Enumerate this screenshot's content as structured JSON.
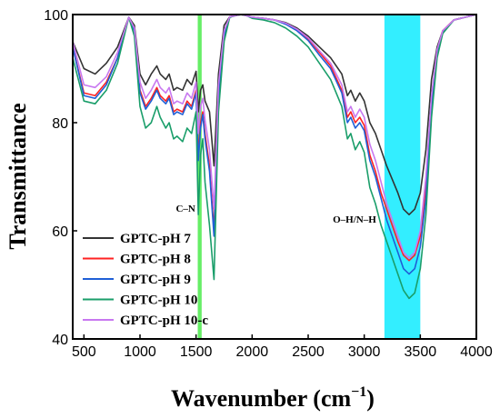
{
  "chart_data": {
    "type": "line",
    "title": "",
    "xlabel": "Wavenumber (cm",
    "xlabel_sup": "−1",
    "xlabel_close": ")",
    "ylabel": "Transmittance",
    "xlim": [
      400,
      4000
    ],
    "ylim": [
      40,
      100
    ],
    "xticks": [
      500,
      1000,
      1500,
      2000,
      2500,
      3000,
      3500,
      4000
    ],
    "yticks": [
      40,
      60,
      80,
      100
    ],
    "grid": false,
    "legend_position": "bottom-left",
    "bands": [
      {
        "x0": 1515,
        "x1": 1550,
        "color": "#66ee66"
      },
      {
        "x0": 3180,
        "x1": 3500,
        "color": "#33eeff"
      }
    ],
    "annotations": [
      {
        "text": "C–N",
        "x": 1320,
        "y": 63.5
      },
      {
        "text": "O–H/N–H",
        "x": 2720,
        "y": 61.5
      }
    ],
    "series": [
      {
        "name": "GPTC-pH 7",
        "color": "#333333",
        "x": [
          400,
          500,
          600,
          700,
          800,
          900,
          950,
          1000,
          1050,
          1100,
          1150,
          1180,
          1230,
          1260,
          1300,
          1330,
          1380,
          1420,
          1460,
          1500,
          1520,
          1540,
          1560,
          1580,
          1620,
          1660,
          1700,
          1750,
          1800,
          1850,
          1900,
          1950,
          2000,
          2100,
          2200,
          2300,
          2400,
          2500,
          2600,
          2700,
          2800,
          2850,
          2880,
          2920,
          2960,
          3000,
          3050,
          3100,
          3150,
          3200,
          3300,
          3350,
          3400,
          3450,
          3500,
          3550,
          3600,
          3650,
          3700,
          3800,
          3900,
          4000
        ],
        "y": [
          95,
          90,
          89,
          91,
          94,
          99.5,
          98,
          89,
          87,
          89,
          90.5,
          89,
          88,
          89,
          86,
          86.5,
          86,
          88,
          87,
          89.5,
          82,
          86,
          87,
          84,
          82,
          72,
          89,
          98,
          99.6,
          99.8,
          100,
          99.8,
          99.5,
          99.3,
          99,
          98.5,
          97.5,
          96,
          94,
          92,
          89,
          85,
          86,
          84,
          85.5,
          84,
          80,
          78,
          75,
          72,
          67,
          64,
          63,
          64,
          67,
          75,
          88,
          94,
          97,
          99,
          99.5,
          100
        ]
      },
      {
        "name": "GPTC-pH 8",
        "color": "#ff2222",
        "x": [
          400,
          500,
          600,
          700,
          800,
          900,
          950,
          1000,
          1050,
          1100,
          1150,
          1180,
          1230,
          1260,
          1300,
          1330,
          1380,
          1420,
          1460,
          1500,
          1520,
          1540,
          1560,
          1580,
          1620,
          1660,
          1700,
          1750,
          1800,
          1850,
          1900,
          1950,
          2000,
          2100,
          2200,
          2300,
          2400,
          2500,
          2600,
          2700,
          2800,
          2850,
          2880,
          2920,
          2960,
          3000,
          3050,
          3100,
          3150,
          3200,
          3300,
          3350,
          3400,
          3450,
          3500,
          3550,
          3600,
          3650,
          3700,
          3800,
          3900,
          4000
        ],
        "y": [
          94,
          85.5,
          85,
          87.5,
          92,
          99.5,
          97,
          86,
          83,
          84.5,
          86.5,
          85,
          84,
          85,
          82,
          82.5,
          82,
          84,
          83,
          86,
          74,
          80,
          82,
          78,
          72,
          60,
          85,
          96,
          99.5,
          99.8,
          100,
          99.8,
          99.5,
          99.3,
          99,
          98.3,
          97.2,
          95.5,
          93,
          90.5,
          86,
          81,
          82,
          80,
          81,
          79.5,
          74,
          71,
          67,
          64,
          58,
          55.5,
          54.5,
          55.5,
          59,
          68,
          84,
          93,
          97,
          99,
          99.5,
          100
        ]
      },
      {
        "name": "GPTC-pH 9",
        "color": "#1f5fd6",
        "x": [
          400,
          500,
          600,
          700,
          800,
          900,
          950,
          1000,
          1050,
          1100,
          1150,
          1180,
          1230,
          1260,
          1300,
          1330,
          1380,
          1420,
          1460,
          1500,
          1520,
          1540,
          1560,
          1580,
          1620,
          1660,
          1700,
          1750,
          1800,
          1850,
          1900,
          1950,
          2000,
          2100,
          2200,
          2300,
          2400,
          2500,
          2600,
          2700,
          2800,
          2850,
          2880,
          2920,
          2960,
          3000,
          3050,
          3100,
          3150,
          3200,
          3300,
          3350,
          3400,
          3450,
          3500,
          3550,
          3600,
          3650,
          3700,
          3800,
          3900,
          4000
        ],
        "y": [
          94,
          85,
          84.5,
          87,
          92,
          99.5,
          97,
          85.5,
          82.5,
          84,
          86,
          84.5,
          83.5,
          84.5,
          81.5,
          82,
          81.5,
          83.5,
          82.5,
          85.5,
          73,
          79,
          81.5,
          77,
          71,
          59,
          84.5,
          96,
          99.5,
          99.8,
          100,
          99.8,
          99.5,
          99.3,
          99,
          98.2,
          97,
          95.2,
          92.5,
          90,
          85.5,
          80,
          81,
          79,
          80,
          78.5,
          73,
          70,
          66,
          62,
          56,
          53,
          52,
          53,
          57,
          66,
          83,
          92.5,
          96.8,
          99,
          99.5,
          100
        ]
      },
      {
        "name": "GPTC-pH 10",
        "color": "#1a9e6a",
        "x": [
          400,
          500,
          600,
          700,
          800,
          900,
          950,
          1000,
          1050,
          1100,
          1150,
          1180,
          1230,
          1260,
          1300,
          1330,
          1380,
          1420,
          1460,
          1500,
          1520,
          1540,
          1560,
          1580,
          1620,
          1660,
          1700,
          1750,
          1800,
          1850,
          1900,
          1950,
          2000,
          2100,
          2200,
          2300,
          2400,
          2500,
          2600,
          2700,
          2800,
          2850,
          2880,
          2920,
          2960,
          3000,
          3050,
          3100,
          3150,
          3200,
          3300,
          3350,
          3400,
          3450,
          3500,
          3550,
          3600,
          3650,
          3700,
          3800,
          3900,
          4000
        ],
        "y": [
          92,
          84,
          83.5,
          86,
          91,
          99.5,
          96,
          83,
          79,
          80,
          83,
          81,
          79,
          80,
          77,
          77.5,
          76.5,
          79,
          78,
          82,
          63,
          74,
          77,
          69,
          61,
          51,
          82,
          95,
          99.5,
          99.8,
          100,
          99.8,
          99.3,
          99,
          98.5,
          97.5,
          96,
          94,
          91,
          88,
          83,
          77,
          78,
          75,
          76.5,
          74.5,
          68,
          65,
          61,
          58,
          52,
          49,
          47.5,
          48.5,
          53,
          63,
          81,
          92,
          96.5,
          99,
          99.5,
          100
        ]
      },
      {
        "name": "GPTC-pH 10-c",
        "color": "#c878f0",
        "x": [
          400,
          500,
          600,
          700,
          800,
          900,
          950,
          1000,
          1050,
          1100,
          1150,
          1180,
          1230,
          1260,
          1300,
          1330,
          1380,
          1420,
          1460,
          1500,
          1520,
          1540,
          1560,
          1580,
          1620,
          1660,
          1700,
          1750,
          1800,
          1850,
          1900,
          1950,
          2000,
          2100,
          2200,
          2300,
          2400,
          2500,
          2600,
          2700,
          2800,
          2850,
          2880,
          2920,
          2960,
          3000,
          3050,
          3100,
          3150,
          3200,
          3300,
          3350,
          3400,
          3450,
          3500,
          3550,
          3600,
          3650,
          3700,
          3800,
          3900,
          4000
        ],
        "y": [
          95,
          87,
          86.5,
          88.5,
          93,
          99.5,
          97.5,
          87.5,
          84.5,
          86,
          88,
          86.5,
          85.5,
          86.5,
          83.5,
          84,
          83.5,
          85.5,
          84.5,
          87.5,
          78,
          83,
          84.5,
          80.5,
          75,
          64,
          87,
          97,
          99.6,
          99.8,
          100,
          99.8,
          99.5,
          99.3,
          99,
          98.4,
          97.3,
          95.7,
          93.3,
          91,
          87,
          82,
          83,
          81,
          82.5,
          81,
          76,
          73,
          69,
          65,
          59,
          56,
          55,
          56,
          60,
          70,
          85,
          93.5,
          97,
          99,
          99.5,
          100
        ]
      }
    ]
  }
}
